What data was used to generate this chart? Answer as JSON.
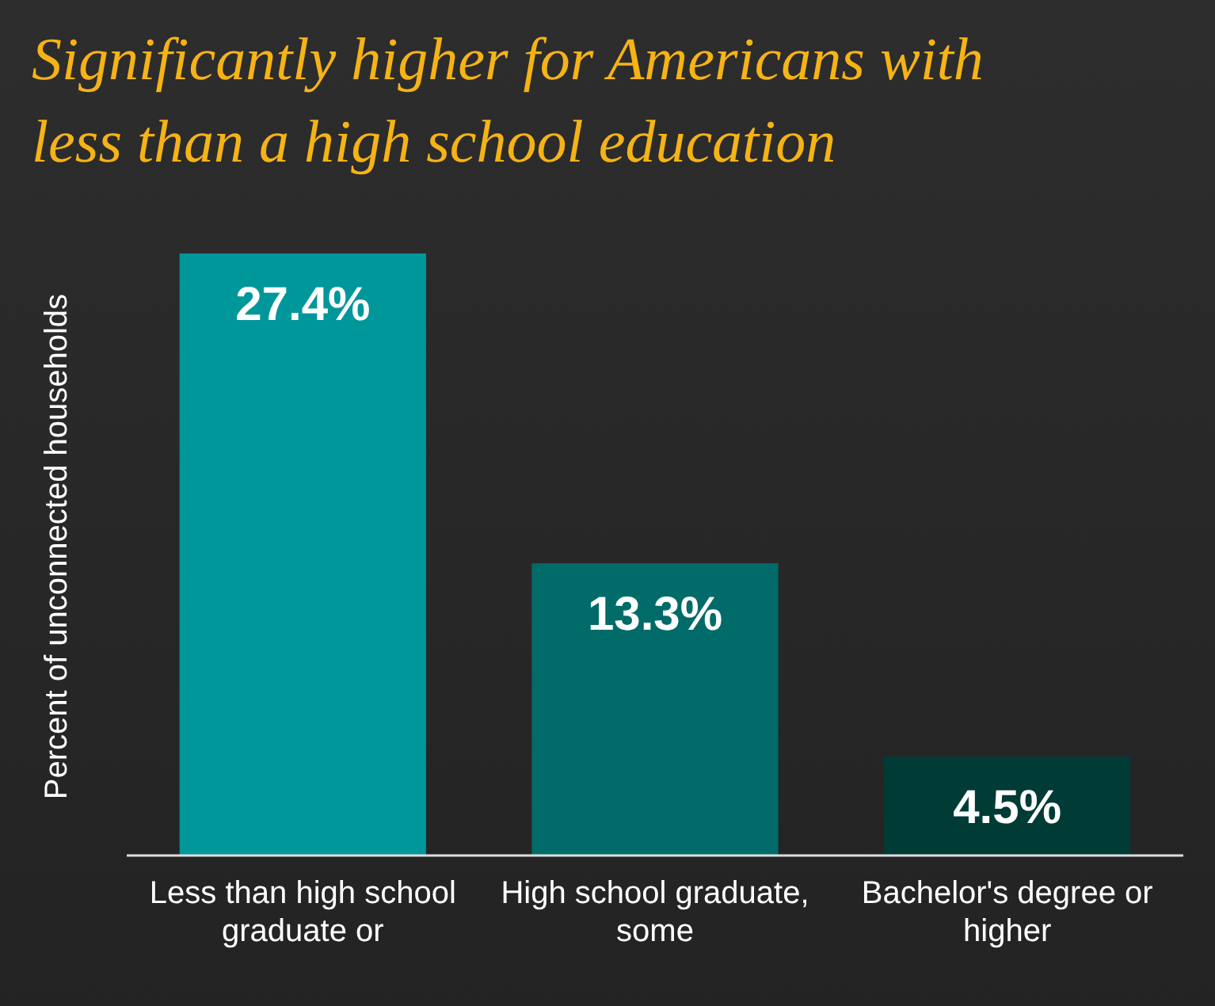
{
  "chart_data": {
    "type": "bar",
    "title": "Significantly higher for Americans with less than a high school education",
    "ylabel": "Percent of unconnected households",
    "categories": [
      "Less than high school graduate or",
      "High school graduate, some",
      "Bachelor's degree or higher"
    ],
    "values": [
      27.4,
      13.3,
      4.5
    ],
    "colors": [
      "#00979a",
      "#006b68",
      "#003b36"
    ],
    "data_labels": true,
    "value_labels": [
      "27.4%",
      "13.3%",
      "4.5%"
    ]
  }
}
